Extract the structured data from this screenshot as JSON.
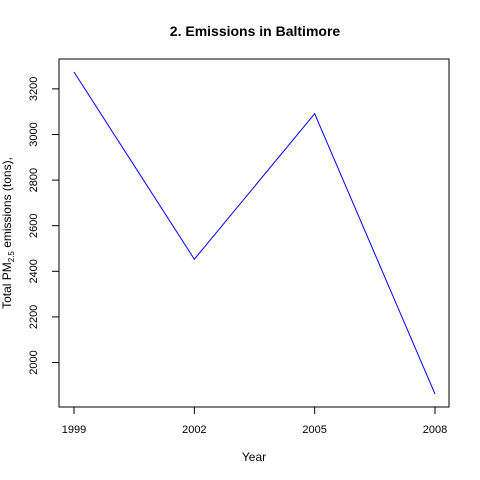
{
  "chart_data": {
    "type": "line",
    "title": "2. Emissions in Baltimore",
    "xlabel": "Year",
    "ylabel_main": "Total PM",
    "ylabel_sub": "2.5",
    "ylabel_rest": " emissions (tons),",
    "x": [
      1999,
      2002,
      2005,
      2008
    ],
    "categories": [
      "1999",
      "2002",
      "2005",
      "2008"
    ],
    "yticks": [
      2000,
      2200,
      2400,
      2600,
      2800,
      3000,
      3200
    ],
    "ylim": [
      1862,
      3274
    ],
    "series": [
      {
        "values": [
          3274,
          2453,
          3091,
          1862
        ]
      }
    ],
    "line_color": "#0000ff",
    "grid": false,
    "legend": "none"
  }
}
